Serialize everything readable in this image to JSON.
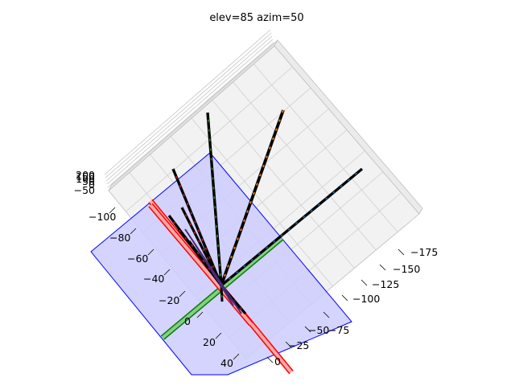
{
  "chart_data": {
    "type": "3d-line",
    "title": "elev=85 azim=50",
    "view": {
      "elev": 85,
      "azim": 50
    },
    "grid": true,
    "axes": {
      "x": {
        "ticks": [
          "−175",
          "−150",
          "−125",
          "−100",
          "−75",
          "−50",
          "−25",
          "0"
        ]
      },
      "y": {
        "ticks": [
          "−100",
          "−80",
          "−60",
          "−40",
          "−20",
          "0",
          "20",
          "40"
        ]
      },
      "z": {
        "ticks": [
          "−50",
          "0",
          "50",
          "100",
          "150",
          "200"
        ]
      }
    },
    "planes": [
      {
        "name": "blue-plane",
        "color": "#0000ff",
        "fill": "#ccccff"
      }
    ],
    "rods": [
      {
        "name": "red-rod-long",
        "color": "#ff0000",
        "inner": "#ffaaaa"
      },
      {
        "name": "red-rod-short",
        "color": "#ff0000",
        "inner": "#ffaaaa"
      },
      {
        "name": "green-rod",
        "color": "#008000",
        "inner": "#88cc88"
      }
    ],
    "series": [
      {
        "name": "",
        "color": "#1f77b4"
      },
      {
        "name": "",
        "color": "#ff7f0e"
      },
      {
        "name": "",
        "color": "#2ca02c"
      },
      {
        "name": "",
        "color": "#d62728"
      }
    ]
  }
}
